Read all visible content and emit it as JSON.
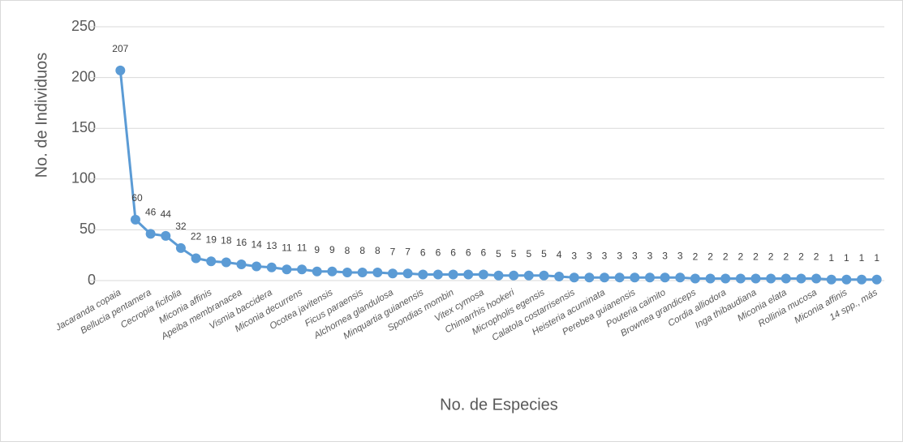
{
  "chart_data": {
    "type": "line",
    "y_label": "No. de Individuos",
    "x_label": "No. de Especies",
    "categories": [
      "Jacaranda copaia",
      null,
      "Bellucia pentamera",
      null,
      "Cecropia ficifolia",
      null,
      "Miconia affinis",
      null,
      "Apeiba membranacea",
      null,
      "Vismia baccidera",
      null,
      "Miconia decurrens",
      null,
      "Ocotea javitensis",
      null,
      "Ficus paraensis",
      null,
      "Alchornea glandulosa",
      null,
      "Minquartia guianensis",
      null,
      "Spondias mombin",
      null,
      "Vitex cymosa",
      null,
      "Chimarrhis hookeri",
      null,
      "Micropholis egensis",
      null,
      "Calatola costarrisensis",
      null,
      "Heisteria acuminata",
      null,
      "Perebea guianensis",
      null,
      "Pouteria caimito",
      null,
      "Brownea grandiceps",
      null,
      "Cordia alliodora",
      null,
      "Inga thibaudiana",
      null,
      "Miconia elata",
      null,
      "Rollinia mucosa",
      null,
      "Miconia affinis",
      null,
      "14 spp., más"
    ],
    "values": [
      207,
      60,
      46,
      44,
      32,
      22,
      19,
      18,
      16,
      14,
      13,
      11,
      11,
      9,
      9,
      8,
      8,
      8,
      7,
      7,
      6,
      6,
      6,
      6,
      6,
      5,
      5,
      5,
      5,
      4,
      3,
      3,
      3,
      3,
      3,
      3,
      3,
      3,
      2,
      2,
      2,
      2,
      2,
      2,
      2,
      2,
      2,
      1,
      1,
      1,
      1
    ],
    "color": "#5b9bd5",
    "ylim": [
      0,
      250
    ],
    "yticks": [
      0,
      50,
      100,
      150,
      200,
      250
    ],
    "grid": true
  }
}
